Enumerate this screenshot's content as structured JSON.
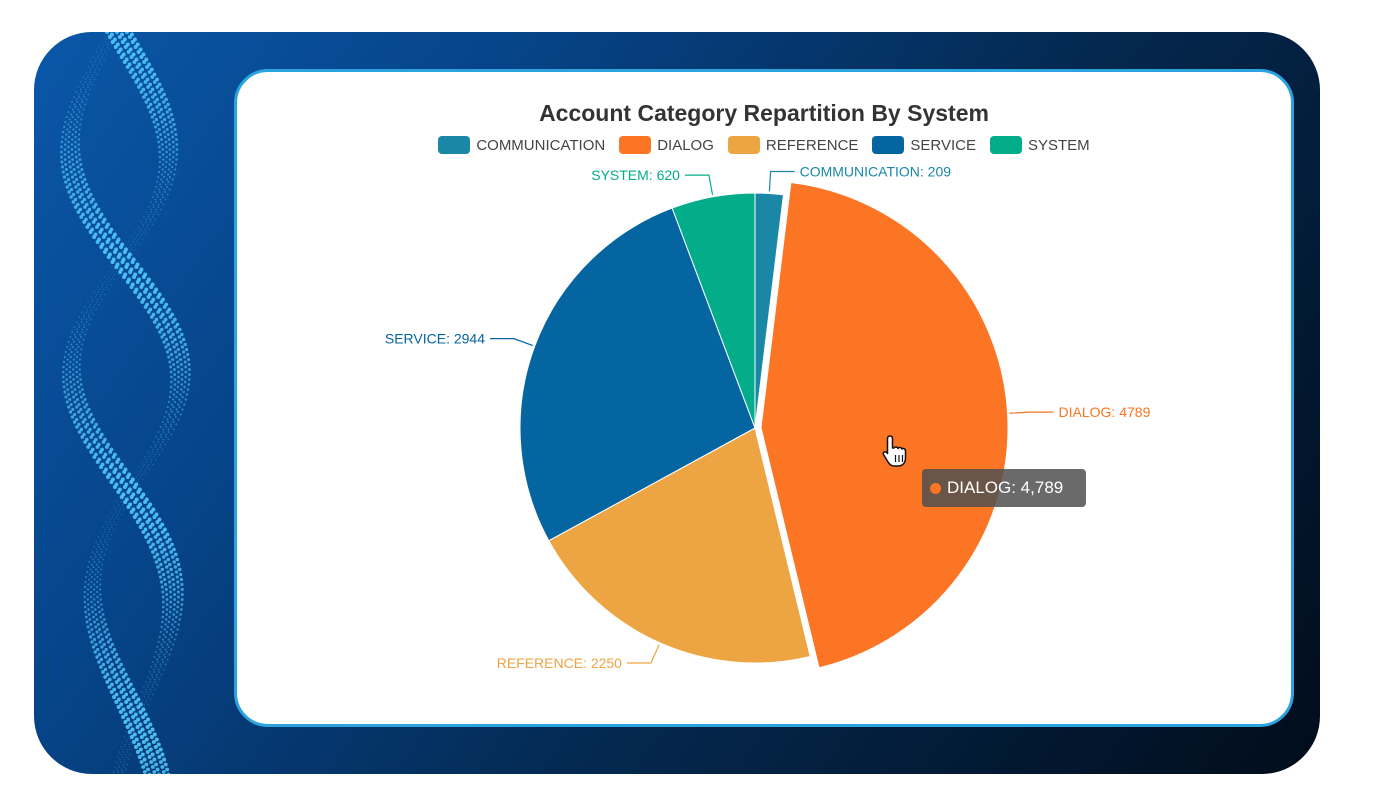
{
  "chart_data": {
    "type": "pie",
    "title": "Account Category Repartition By System",
    "legend_position": "top",
    "categories": [
      "COMMUNICATION",
      "DIALOG",
      "REFERENCE",
      "SERVICE",
      "SYSTEM"
    ],
    "values": [
      209,
      4789,
      2250,
      2944,
      620
    ],
    "colors": [
      "#1a87a6",
      "#fb7524",
      "#eda442",
      "#0465a1",
      "#04ad8a"
    ],
    "slice_labels": [
      "COMMUNICATION: 209",
      "DIALOG: 4789",
      "REFERENCE: 2250",
      "SERVICE: 2944",
      "SYSTEM: 620"
    ],
    "highlighted": "DIALOG"
  },
  "tooltip": {
    "text": "DIALOG: 4,789",
    "color": "#fb7524"
  }
}
